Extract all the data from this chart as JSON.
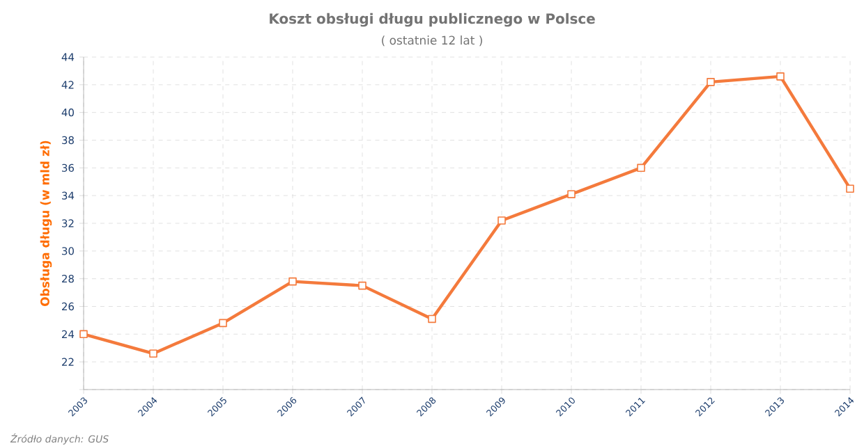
{
  "chart_data": {
    "type": "line",
    "title": "Koszt obsługi długu publicznego w Polsce",
    "subtitle": "( ostatnie 12 lat )",
    "ylabel": "Obsługa długu (w mld zł)",
    "x": [
      2003,
      2004,
      2005,
      2006,
      2007,
      2008,
      2009,
      2010,
      2011,
      2012,
      2013,
      2014
    ],
    "series": [
      {
        "color": "#f47a3c",
        "values": [
          24.0,
          22.6,
          24.8,
          27.8,
          27.5,
          25.1,
          32.2,
          34.1,
          36.0,
          42.2,
          42.6,
          34.5
        ]
      }
    ],
    "xlim": [
      2003,
      2014
    ],
    "xticks": [
      2003,
      2004,
      2005,
      2006,
      2007,
      2008,
      2009,
      2010,
      2011,
      2012,
      2013,
      2014
    ],
    "ylim": [
      20,
      44
    ],
    "yticks": [
      {
        "value": 20,
        "label": null
      },
      22,
      24,
      26,
      28,
      30,
      32,
      34,
      36,
      38,
      40,
      42,
      44
    ],
    "grid": true,
    "marker": "square",
    "line_style": "solid",
    "annotations": [
      "Źródło danych: GUS"
    ]
  }
}
